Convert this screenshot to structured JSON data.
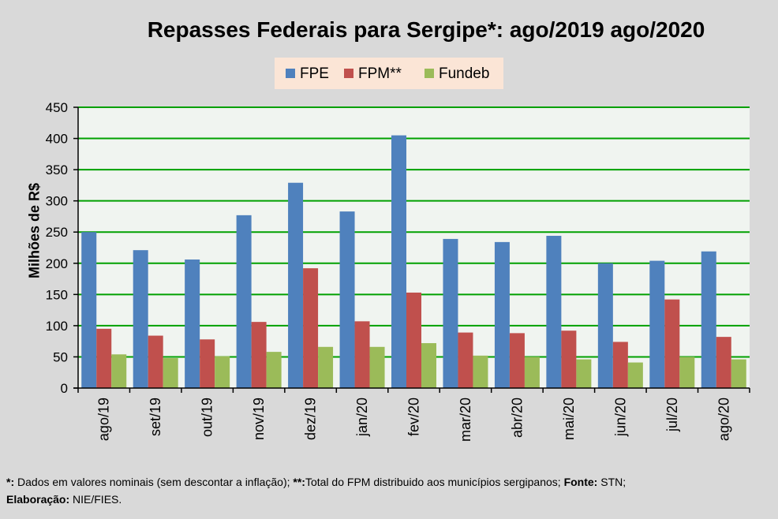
{
  "chart_data": {
    "type": "bar",
    "title": "Repasses Federais para Sergipe*: ago/2019 ago/2020",
    "xlabel": "",
    "ylabel": "Milhões de R$",
    "ylim": [
      0,
      450
    ],
    "yticks": [
      0,
      50,
      100,
      150,
      200,
      250,
      300,
      350,
      400,
      450
    ],
    "grid": true,
    "legend_position": "top-center",
    "categories": [
      "ago/19",
      "set/19",
      "out/19",
      "nov/19",
      "dez/19",
      "jan/20",
      "fev/20",
      "mar/20",
      "abr/20",
      "mai/20",
      "jun/20",
      "jul/20",
      "ago/20"
    ],
    "series": [
      {
        "name": "FPE",
        "color": "#4f81bd",
        "values": [
          250,
          221,
          206,
          277,
          329,
          283,
          405,
          239,
          234,
          244,
          200,
          204,
          219
        ]
      },
      {
        "name": "FPM**",
        "color": "#c0504d",
        "values": [
          95,
          84,
          78,
          106,
          192,
          107,
          153,
          89,
          88,
          92,
          74,
          142,
          82
        ]
      },
      {
        "name": "Fundeb",
        "color": "#9bbb59",
        "values": [
          54,
          48,
          51,
          58,
          66,
          66,
          72,
          52,
          50,
          46,
          41,
          50,
          46
        ]
      }
    ]
  },
  "footnote": {
    "line1_mark1": "*:",
    "line1_text1": " Dados em valores nominais (sem descontar a inflação); ",
    "line1_mark2": "**:",
    "line1_text2": "Total  do FPM distribuido aos municípios sergipanos; ",
    "line1_mark3": "Fonte:",
    "line1_text3": " STN;",
    "line2_mark": "Elaboração:",
    "line2_text": " NIE/FIES."
  },
  "colors": {
    "background": "#d9d9d9",
    "plot_background": "#f0f4f0",
    "gridline": "#00a000",
    "legend_background": "#fbe5d6"
  }
}
